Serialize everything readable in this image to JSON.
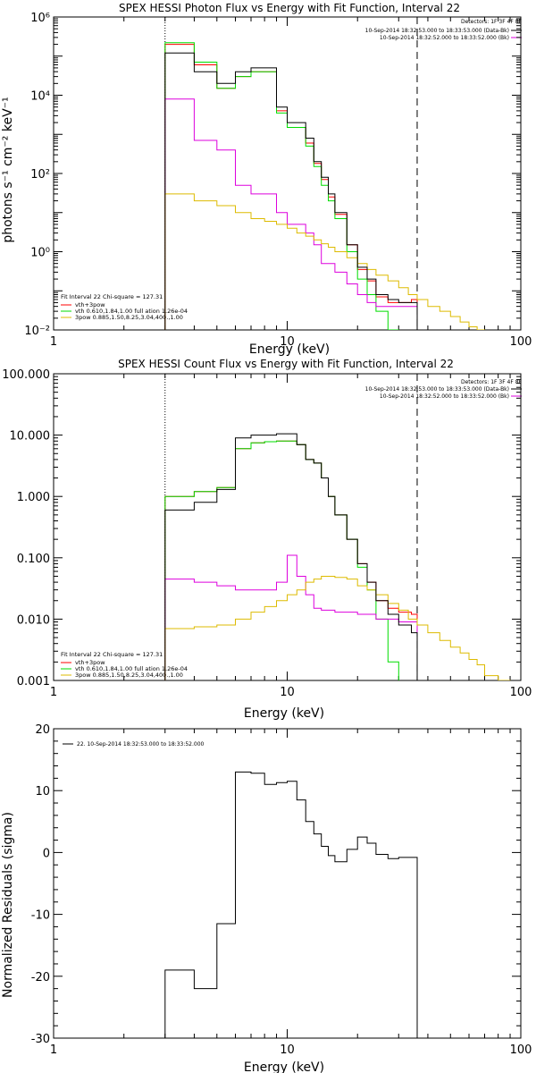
{
  "colors": {
    "data": "#000000",
    "total": "#ff0000",
    "vth": "#00dd00",
    "bkg": "#dd00dd",
    "pow": "#ddbb00"
  },
  "chart_data": [
    {
      "type": "line",
      "title": "SPEX HESSI Photon Flux vs Energy with Fit Function, Interval 22",
      "xlabel": "Energy (keV)",
      "ylabel": "photons s⁻¹ cm⁻² keV⁻¹",
      "xscale": "log",
      "yscale": "log",
      "xlim": [
        1,
        100
      ],
      "ylim": [
        0.01,
        1000000
      ],
      "x_ticks": [
        "1",
        "10",
        "100"
      ],
      "y_ticks": [
        "10⁻²",
        "10⁰",
        "10²",
        "10⁴",
        "10⁶"
      ],
      "legend_right": {
        "header": "Detectors: 1F 3F 4F 8F",
        "entries": [
          "10-Sep-2014 18:32:53.000 to 18:33:53.000 (Data-Bk)",
          "10-Sep-2014 18:32:52.000 to 18:33:52.000 (Bk)"
        ]
      },
      "legend_left": {
        "header": "Fit Interval 22   Chi-square = 127.31",
        "entries": [
          "vth+3pow",
          "vth 0.610,1.84,1.00  full ation 1.26e-04",
          "3pow 0.885,1.50,8.25,3.04,400.,1.00"
        ]
      },
      "series": [
        {
          "name": "Data-Bk",
          "color_key": "data",
          "edges": [
            3,
            4,
            5,
            6,
            7,
            8,
            9,
            10,
            11,
            12,
            13,
            14,
            15,
            16,
            18,
            20,
            22,
            24,
            27,
            30,
            34,
            36
          ],
          "values": [
            120000,
            40000,
            20000,
            40000,
            50000,
            50000,
            5000,
            2000,
            2000,
            800,
            200,
            80,
            30,
            10,
            1.5,
            0.4,
            0.2,
            0.08,
            0.06,
            0.05,
            0.05
          ]
        },
        {
          "name": "vth+3pow",
          "color_key": "total",
          "edges": [
            3,
            4,
            5,
            6,
            7,
            8,
            9,
            10,
            11,
            12,
            13,
            14,
            15,
            16,
            18,
            20,
            22,
            24,
            27,
            30,
            34,
            36
          ],
          "values": [
            200000,
            60000,
            15000,
            30000,
            40000,
            40000,
            4000,
            1500,
            1500,
            600,
            180,
            70,
            25,
            9,
            1.5,
            0.35,
            0.18,
            0.07,
            0.05,
            0.05,
            0.06
          ]
        },
        {
          "name": "vth",
          "color_key": "vth",
          "edges": [
            3,
            4,
            5,
            6,
            7,
            8,
            9,
            10,
            11,
            12,
            13,
            14,
            15,
            16,
            18,
            20,
            22,
            24,
            27,
            30
          ],
          "values": [
            220000,
            70000,
            15000,
            30000,
            40000,
            40000,
            3500,
            1500,
            1500,
            500,
            150,
            50,
            20,
            7,
            1,
            0.2,
            0.08,
            0.03,
            0.01
          ]
        },
        {
          "name": "Bk",
          "color_key": "bkg",
          "edges": [
            3,
            4,
            5,
            6,
            7,
            8,
            9,
            10,
            11,
            12,
            13,
            14,
            16,
            18,
            20,
            22,
            24,
            27,
            30,
            34,
            36
          ],
          "values": [
            8000,
            700,
            400,
            50,
            30,
            30,
            10,
            5,
            5,
            3,
            1.5,
            0.5,
            0.3,
            0.15,
            0.08,
            0.05,
            0.04,
            0.04,
            0.04,
            0.04
          ]
        },
        {
          "name": "3pow",
          "color_key": "pow",
          "edges": [
            3,
            4,
            5,
            6,
            7,
            8,
            9,
            10,
            11,
            12,
            13,
            14,
            15,
            16,
            18,
            20,
            22,
            24,
            27,
            30,
            33,
            36,
            40,
            45,
            50,
            55,
            60,
            65,
            70
          ],
          "values": [
            30,
            20,
            15,
            10,
            7,
            6,
            5,
            4,
            3,
            2.5,
            2,
            1.6,
            1.3,
            1,
            0.7,
            0.5,
            0.35,
            0.25,
            0.18,
            0.12,
            0.08,
            0.06,
            0.04,
            0.03,
            0.022,
            0.016,
            0.012,
            0.01
          ]
        }
      ]
    },
    {
      "type": "line",
      "title": "SPEX HESSI Count Flux vs Energy with Fit Function, Interval 22",
      "xlabel": "Energy (keV)",
      "ylabel": "",
      "xscale": "log",
      "yscale": "log",
      "xlim": [
        1,
        100
      ],
      "ylim": [
        0.001,
        100
      ],
      "x_ticks": [
        "1",
        "10",
        "100"
      ],
      "y_ticks": [
        "0.001",
        "0.010",
        "0.100",
        "1.000",
        "10.000",
        "100.000"
      ],
      "legend_right": {
        "header": "Detectors: 1F 3F 4F 8F",
        "entries": [
          "10-Sep-2014 18:32:53.000 to 18:33:53.000 (Data-Bk)",
          "10-Sep-2014 18:32:52.000 to 18:33:52.000 (Bk)"
        ]
      },
      "legend_left": {
        "header": "Fit Interval 22   Chi-square = 127.31",
        "entries": [
          "vth+3pow",
          "vth 0.610,1.84,1.00  full ation 1.26e-04",
          "3pow 0.885,1.50,8.25,3.04,400.,1.00"
        ]
      },
      "series": [
        {
          "name": "Data-Bk",
          "color_key": "data",
          "edges": [
            3,
            4,
            5,
            6,
            7,
            8,
            9,
            10,
            11,
            12,
            13,
            14,
            15,
            16,
            18,
            20,
            22,
            24,
            27,
            30,
            34,
            36
          ],
          "values": [
            0.6,
            0.8,
            1.3,
            9,
            10,
            10,
            10.5,
            10.5,
            7,
            4,
            3.5,
            2,
            1,
            0.5,
            0.2,
            0.08,
            0.04,
            0.02,
            0.012,
            0.008,
            0.006
          ]
        },
        {
          "name": "vth+3pow",
          "color_key": "total",
          "edges": [
            3,
            4,
            5,
            6,
            7,
            8,
            9,
            10,
            11,
            12,
            13,
            14,
            15,
            16,
            18,
            20,
            22,
            24,
            27,
            30,
            34,
            36
          ],
          "values": [
            1,
            1.2,
            1.4,
            6,
            7.5,
            7.8,
            8,
            8,
            7,
            4,
            3.5,
            2,
            1,
            0.5,
            0.2,
            0.08,
            0.04,
            0.02,
            0.015,
            0.013,
            0.012
          ]
        },
        {
          "name": "vth",
          "color_key": "vth",
          "edges": [
            3,
            4,
            5,
            6,
            7,
            8,
            9,
            10,
            11,
            12,
            13,
            14,
            15,
            16,
            18,
            20,
            22,
            24,
            27,
            30
          ],
          "values": [
            1,
            1.2,
            1.4,
            6,
            7.5,
            7.8,
            8,
            8,
            7,
            4,
            3.5,
            2,
            1,
            0.5,
            0.2,
            0.07,
            0.03,
            0.01,
            0.002
          ]
        },
        {
          "name": "Bk",
          "color_key": "bkg",
          "edges": [
            3,
            4,
            5,
            6,
            7,
            8,
            9,
            10,
            11,
            12,
            13,
            14,
            16,
            18,
            20,
            22,
            24,
            27,
            30,
            34,
            36
          ],
          "values": [
            0.045,
            0.04,
            0.035,
            0.03,
            0.03,
            0.03,
            0.04,
            0.11,
            0.05,
            0.025,
            0.015,
            0.014,
            0.013,
            0.013,
            0.012,
            0.012,
            0.01,
            0.01,
            0.009,
            0.009
          ]
        },
        {
          "name": "3pow",
          "color_key": "pow",
          "edges": [
            3,
            4,
            5,
            6,
            7,
            8,
            9,
            10,
            11,
            12,
            13,
            14,
            15,
            16,
            18,
            20,
            22,
            24,
            27,
            30,
            33,
            36,
            40,
            45,
            50,
            55,
            60,
            65,
            70,
            80,
            90
          ],
          "values": [
            0.007,
            0.0075,
            0.008,
            0.01,
            0.013,
            0.016,
            0.02,
            0.025,
            0.03,
            0.04,
            0.045,
            0.05,
            0.05,
            0.048,
            0.045,
            0.035,
            0.03,
            0.025,
            0.018,
            0.014,
            0.01,
            0.008,
            0.006,
            0.0045,
            0.0035,
            0.0028,
            0.0022,
            0.0018,
            0.0012,
            0.001
          ]
        }
      ]
    },
    {
      "type": "line",
      "title": "",
      "xlabel": "Energy (keV)",
      "ylabel": "Normalized Residuals (sigma)",
      "xscale": "log",
      "yscale": "linear",
      "xlim": [
        1,
        100
      ],
      "ylim": [
        -30,
        20
      ],
      "x_ticks": [
        "1",
        "10",
        "100"
      ],
      "y_ticks": [
        "-30",
        "-20",
        "-10",
        "0",
        "10",
        "20"
      ],
      "legend_left": {
        "entries": [
          "22. 10-Sep-2014 18:32:53.000 to 18:33:52.000"
        ]
      },
      "series": [
        {
          "name": "22. 10-Sep-2014 18:32:53.000 to 18:33:52.000",
          "color_key": "data",
          "edges": [
            3,
            4,
            5,
            6,
            7,
            8,
            9,
            10,
            11,
            12,
            13,
            14,
            15,
            16,
            18,
            20,
            22,
            24,
            27,
            30,
            34,
            36
          ],
          "values": [
            -19,
            -22,
            -11.5,
            13,
            12.8,
            11,
            11.3,
            11.5,
            8.5,
            5,
            3,
            1,
            -0.5,
            -1.5,
            0.5,
            2.5,
            1.5,
            -0.3,
            -1,
            -0.8,
            -0.8
          ]
        }
      ]
    }
  ]
}
